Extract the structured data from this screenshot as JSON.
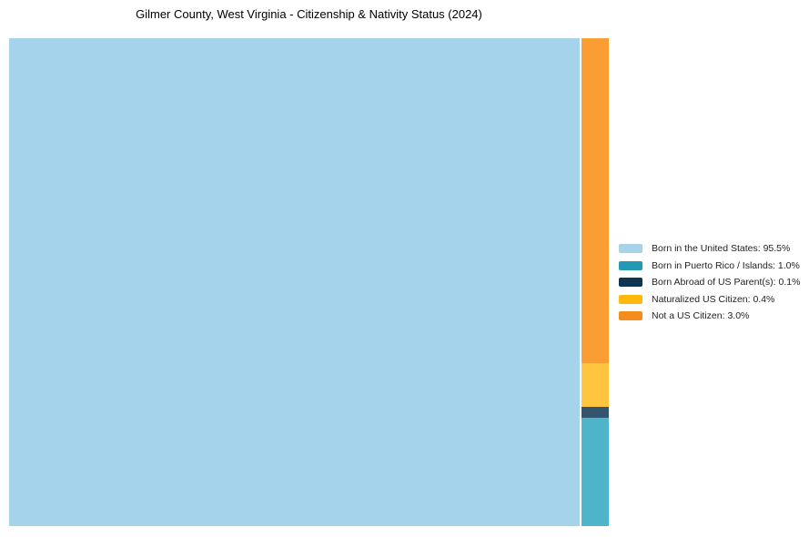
{
  "title": "Gilmer County, West Virginia - Citizenship & Nativity Status (2024)",
  "chart_data": {
    "type": "treemap",
    "title": "Gilmer County, West Virginia - Citizenship & Nativity Status (2024)",
    "unit": "%",
    "total": 100,
    "items": [
      {
        "label": "Born in the United States",
        "value": 95.5,
        "legend_label": "Born in the United States: 95.5%",
        "tile_color": "#A5D3EC",
        "swatch_color": "#A8D2E8"
      },
      {
        "label": "Born in Puerto Rico / Islands",
        "value": 1.0,
        "legend_label": "Born in Puerto Rico / Islands: 1.0%",
        "tile_color": "#4DB4C9",
        "swatch_color": "#2399B5"
      },
      {
        "label": "Born Abroad of US Parent(s)",
        "value": 0.1,
        "legend_label": "Born Abroad of US Parent(s): 0.1%",
        "tile_color": "#33566E",
        "swatch_color": "#0F3550"
      },
      {
        "label": "Naturalized US Citizen",
        "value": 0.4,
        "legend_label": "Naturalized US Citizen: 0.4%",
        "tile_color": "#FFC53E",
        "swatch_color": "#FFB90C"
      },
      {
        "label": "Not a US Citizen",
        "value": 3.0,
        "legend_label": "Not a US Citizen: 3.0%",
        "tile_color": "#FA9D32",
        "swatch_color": "#F78C1E"
      }
    ],
    "layout": {
      "legend_position": "right",
      "primary_tile": "Born in the United States",
      "right_column_top_to_bottom": [
        "Not a US Citizen",
        "Naturalized US Citizen",
        "Born Abroad of US Parent(s)",
        "Born in Puerto Rico / Islands"
      ]
    }
  }
}
